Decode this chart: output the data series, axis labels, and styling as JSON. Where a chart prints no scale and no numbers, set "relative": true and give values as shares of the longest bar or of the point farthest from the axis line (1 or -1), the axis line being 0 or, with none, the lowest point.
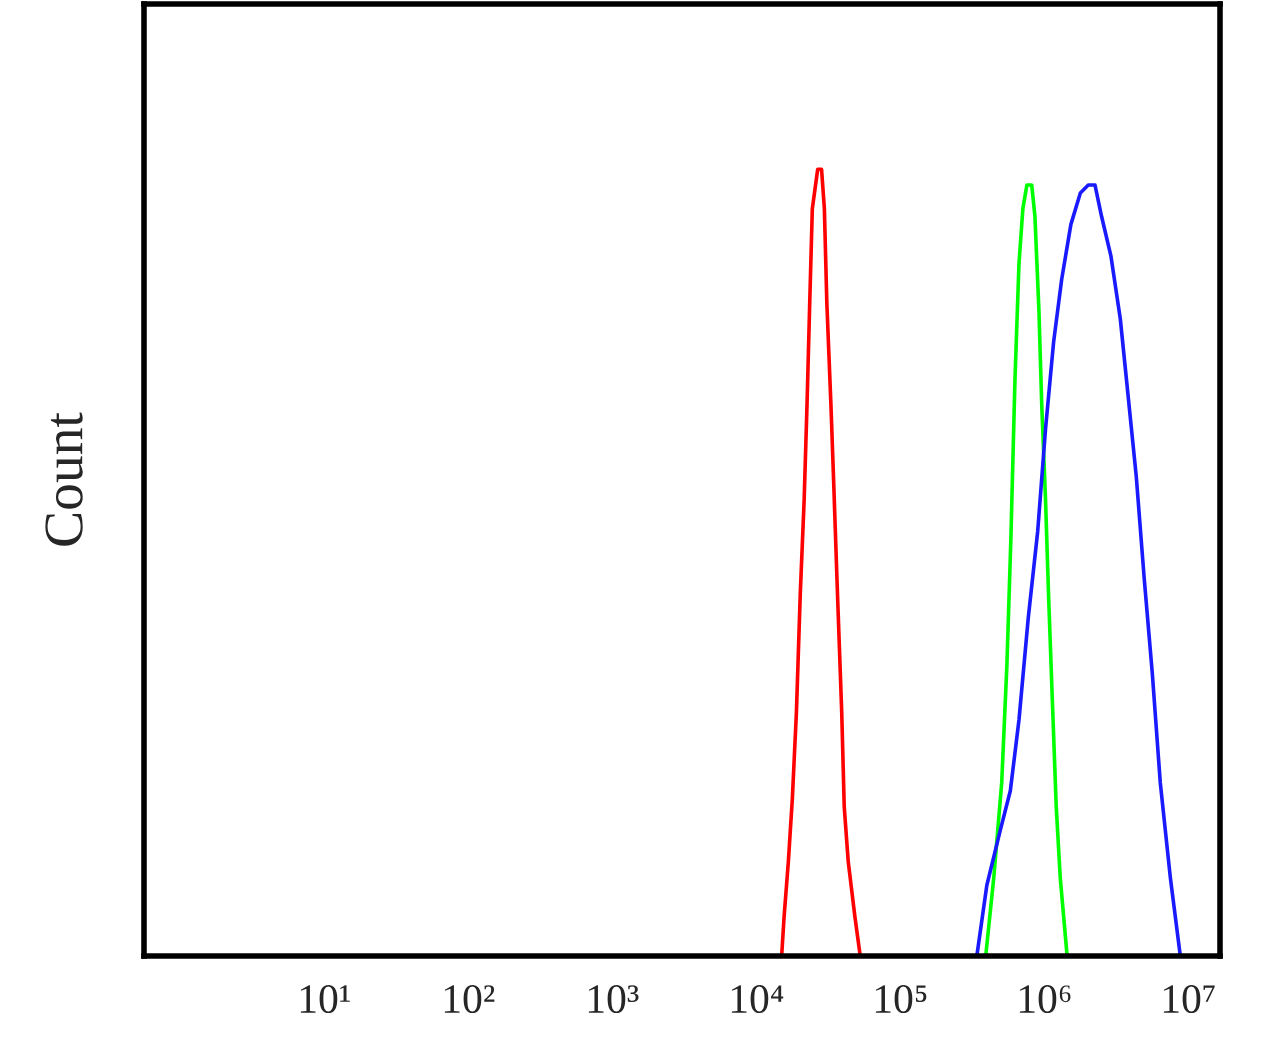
{
  "chart_data": {
    "type": "line",
    "ylabel": "Count",
    "relative": true,
    "log": "x",
    "grid": false,
    "legend": false,
    "tick_labels": "x",
    "xlim": [
      0.56,
      16600000
    ],
    "xticks": [
      {
        "value": 10,
        "label": "10¹"
      },
      {
        "value": 100,
        "label": "10²"
      },
      {
        "value": 1000,
        "label": "10³"
      },
      {
        "value": 10000,
        "label": "10⁴"
      },
      {
        "value": 100000,
        "label": "10⁵"
      },
      {
        "value": 1000000,
        "label": "10⁶"
      },
      {
        "value": 10000000,
        "label": "10⁷"
      }
    ],
    "series": [
      {
        "color": "#ff0000",
        "x": [
          15000,
          15600,
          16700,
          17800,
          19000,
          20200,
          21500,
          22500,
          23500,
          24500,
          26700,
          28400,
          29700,
          30900,
          33000,
          34500,
          36800,
          39200,
          40800,
          43500,
          48400,
          52700
        ],
        "values": [
          0,
          0.05,
          0.12,
          0.2,
          0.31,
          0.46,
          0.58,
          0.7,
          0.83,
          0.95,
          1.0,
          1.0,
          0.95,
          0.83,
          0.7,
          0.6,
          0.45,
          0.31,
          0.19,
          0.12,
          0.05,
          0
        ]
      },
      {
        "color": "#00ff00",
        "x": [
          392000,
          446000,
          506000,
          550000,
          586000,
          625000,
          667000,
          710000,
          757000,
          818000,
          861000,
          918000,
          960000,
          1020000,
          1070000,
          1140000,
          1210000,
          1290000,
          1440000
        ],
        "values": [
          0,
          0.1,
          0.22,
          0.37,
          0.53,
          0.73,
          0.88,
          0.95,
          0.98,
          0.98,
          0.94,
          0.82,
          0.7,
          0.58,
          0.46,
          0.32,
          0.19,
          0.1,
          0
        ]
      },
      {
        "color": "#1a1aff",
        "x": [
          340000,
          399000,
          495000,
          581000,
          667000,
          774000,
          900000,
          1020000,
          1160000,
          1320000,
          1530000,
          1780000,
          2020000,
          2250000,
          2500000,
          2900000,
          3370000,
          3830000,
          4350000,
          4940000,
          5620000,
          6390000,
          7500000,
          8800000
        ],
        "values": [
          0,
          0.09,
          0.16,
          0.21,
          0.3,
          0.43,
          0.54,
          0.67,
          0.78,
          0.86,
          0.93,
          0.97,
          0.98,
          0.98,
          0.94,
          0.89,
          0.81,
          0.71,
          0.61,
          0.48,
          0.36,
          0.22,
          0.1,
          0
        ]
      }
    ]
  }
}
